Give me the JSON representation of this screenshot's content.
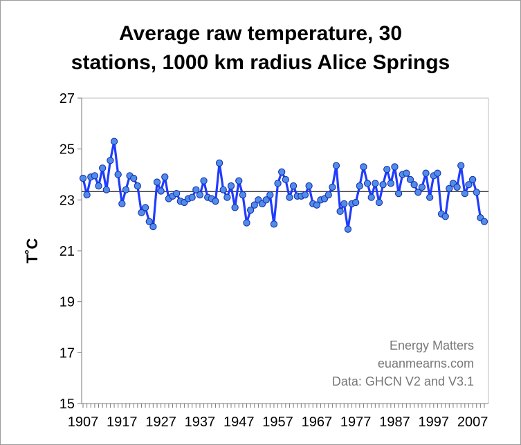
{
  "chart_data": {
    "type": "line",
    "title_line1": "Average raw temperature, 30",
    "title_line2": "stations, 1000 km radius Alice Springs",
    "ylabel": "T˚C",
    "xlabel": "",
    "ylim": [
      15,
      27
    ],
    "yticks": [
      "15",
      "17",
      "19",
      "21",
      "23",
      "25",
      "27"
    ],
    "xticks": [
      "1907",
      "1917",
      "1927",
      "1937",
      "1947",
      "1957",
      "1967",
      "1977",
      "1987",
      "1997",
      "2007"
    ],
    "x_start": 1907,
    "grid": false,
    "annotations": [
      "Energy Matters",
      "euanmearns.com",
      "Data: GHCN V2 and V3.1"
    ],
    "series": [
      {
        "name": "Average raw temperature",
        "color": "#1f3cff",
        "marker_color": "#4f8ee8",
        "years": [
          1907,
          1908,
          1909,
          1910,
          1911,
          1912,
          1913,
          1914,
          1915,
          1916,
          1917,
          1918,
          1919,
          1920,
          1921,
          1922,
          1923,
          1924,
          1925,
          1926,
          1927,
          1928,
          1929,
          1930,
          1931,
          1932,
          1933,
          1934,
          1935,
          1936,
          1937,
          1938,
          1939,
          1940,
          1941,
          1942,
          1943,
          1944,
          1945,
          1946,
          1947,
          1948,
          1949,
          1950,
          1951,
          1952,
          1953,
          1954,
          1955,
          1956,
          1957,
          1958,
          1959,
          1960,
          1961,
          1962,
          1963,
          1964,
          1965,
          1966,
          1967,
          1968,
          1969,
          1970,
          1971,
          1972,
          1973,
          1974,
          1975,
          1976,
          1977,
          1978,
          1979,
          1980,
          1981,
          1982,
          1983,
          1984,
          1985,
          1986,
          1987,
          1988,
          1989,
          1990,
          1991,
          1992,
          1993,
          1994,
          1995,
          1996,
          1997,
          1998,
          1999,
          2000,
          2001,
          2002,
          2003,
          2004,
          2005,
          2006,
          2007,
          2008,
          2009,
          2010
        ],
        "values": [
          23.85,
          23.2,
          23.9,
          23.95,
          23.55,
          24.25,
          23.4,
          24.55,
          25.3,
          24.0,
          22.85,
          23.4,
          23.95,
          23.85,
          23.55,
          22.5,
          22.7,
          22.15,
          21.95,
          23.7,
          23.35,
          23.9,
          23.05,
          23.15,
          23.25,
          22.95,
          22.9,
          23.05,
          23.1,
          23.4,
          23.2,
          23.75,
          23.1,
          23.05,
          22.95,
          24.45,
          23.4,
          23.1,
          23.55,
          22.7,
          23.75,
          23.2,
          22.1,
          22.6,
          22.8,
          23.0,
          22.85,
          23.0,
          23.2,
          22.05,
          23.65,
          24.1,
          23.8,
          23.1,
          23.55,
          23.15,
          23.15,
          23.2,
          23.55,
          22.85,
          22.8,
          23.0,
          23.05,
          23.2,
          23.5,
          24.35,
          22.55,
          22.85,
          21.85,
          22.85,
          22.9,
          23.55,
          24.3,
          23.65,
          23.1,
          23.65,
          22.9,
          23.6,
          24.2,
          23.65,
          24.3,
          23.25,
          24.0,
          24.05,
          23.8,
          23.6,
          23.3,
          23.5,
          24.05,
          23.1,
          23.95,
          24.05,
          22.45,
          22.35,
          23.45,
          23.65,
          23.5,
          24.35,
          23.25,
          23.6,
          23.8,
          23.3,
          22.3,
          22.15
        ]
      },
      {
        "name": "Mean",
        "color": "#000000",
        "values": [
          23.33,
          23.33
        ]
      }
    ]
  }
}
